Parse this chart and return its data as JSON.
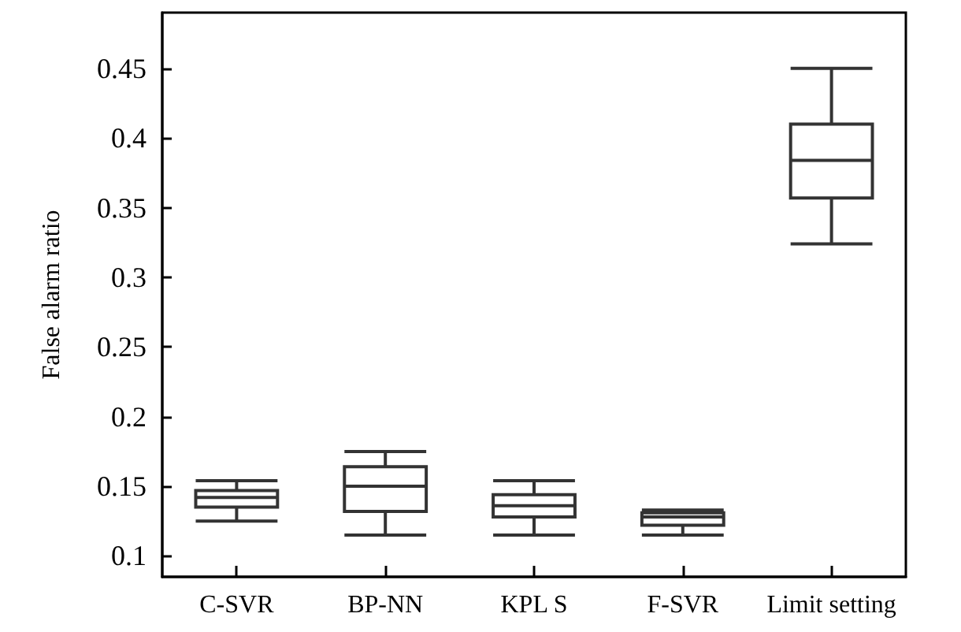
{
  "chart_data": {
    "type": "box",
    "ylabel": "False alarm ratio",
    "categories": [
      "C-SVR",
      "BP-NN",
      "KPL S",
      "F-SVR",
      "Limit setting"
    ],
    "boxes": [
      {
        "low": 0.125,
        "q1": 0.135,
        "median": 0.142,
        "q3": 0.147,
        "high": 0.154
      },
      {
        "low": 0.115,
        "q1": 0.132,
        "median": 0.15,
        "q3": 0.164,
        "high": 0.175
      },
      {
        "low": 0.115,
        "q1": 0.128,
        "median": 0.136,
        "q3": 0.144,
        "high": 0.154
      },
      {
        "low": 0.115,
        "q1": 0.122,
        "median": 0.128,
        "q3": 0.131,
        "high": 0.133
      },
      {
        "low": 0.324,
        "q1": 0.357,
        "median": 0.384,
        "q3": 0.41,
        "high": 0.45
      }
    ],
    "color": "#333333",
    "ylim": [
      0.085,
      0.49
    ],
    "yticks": [
      0.1,
      0.15,
      0.2,
      0.25,
      0.3,
      0.35,
      0.4,
      0.45
    ],
    "grid": false
  }
}
